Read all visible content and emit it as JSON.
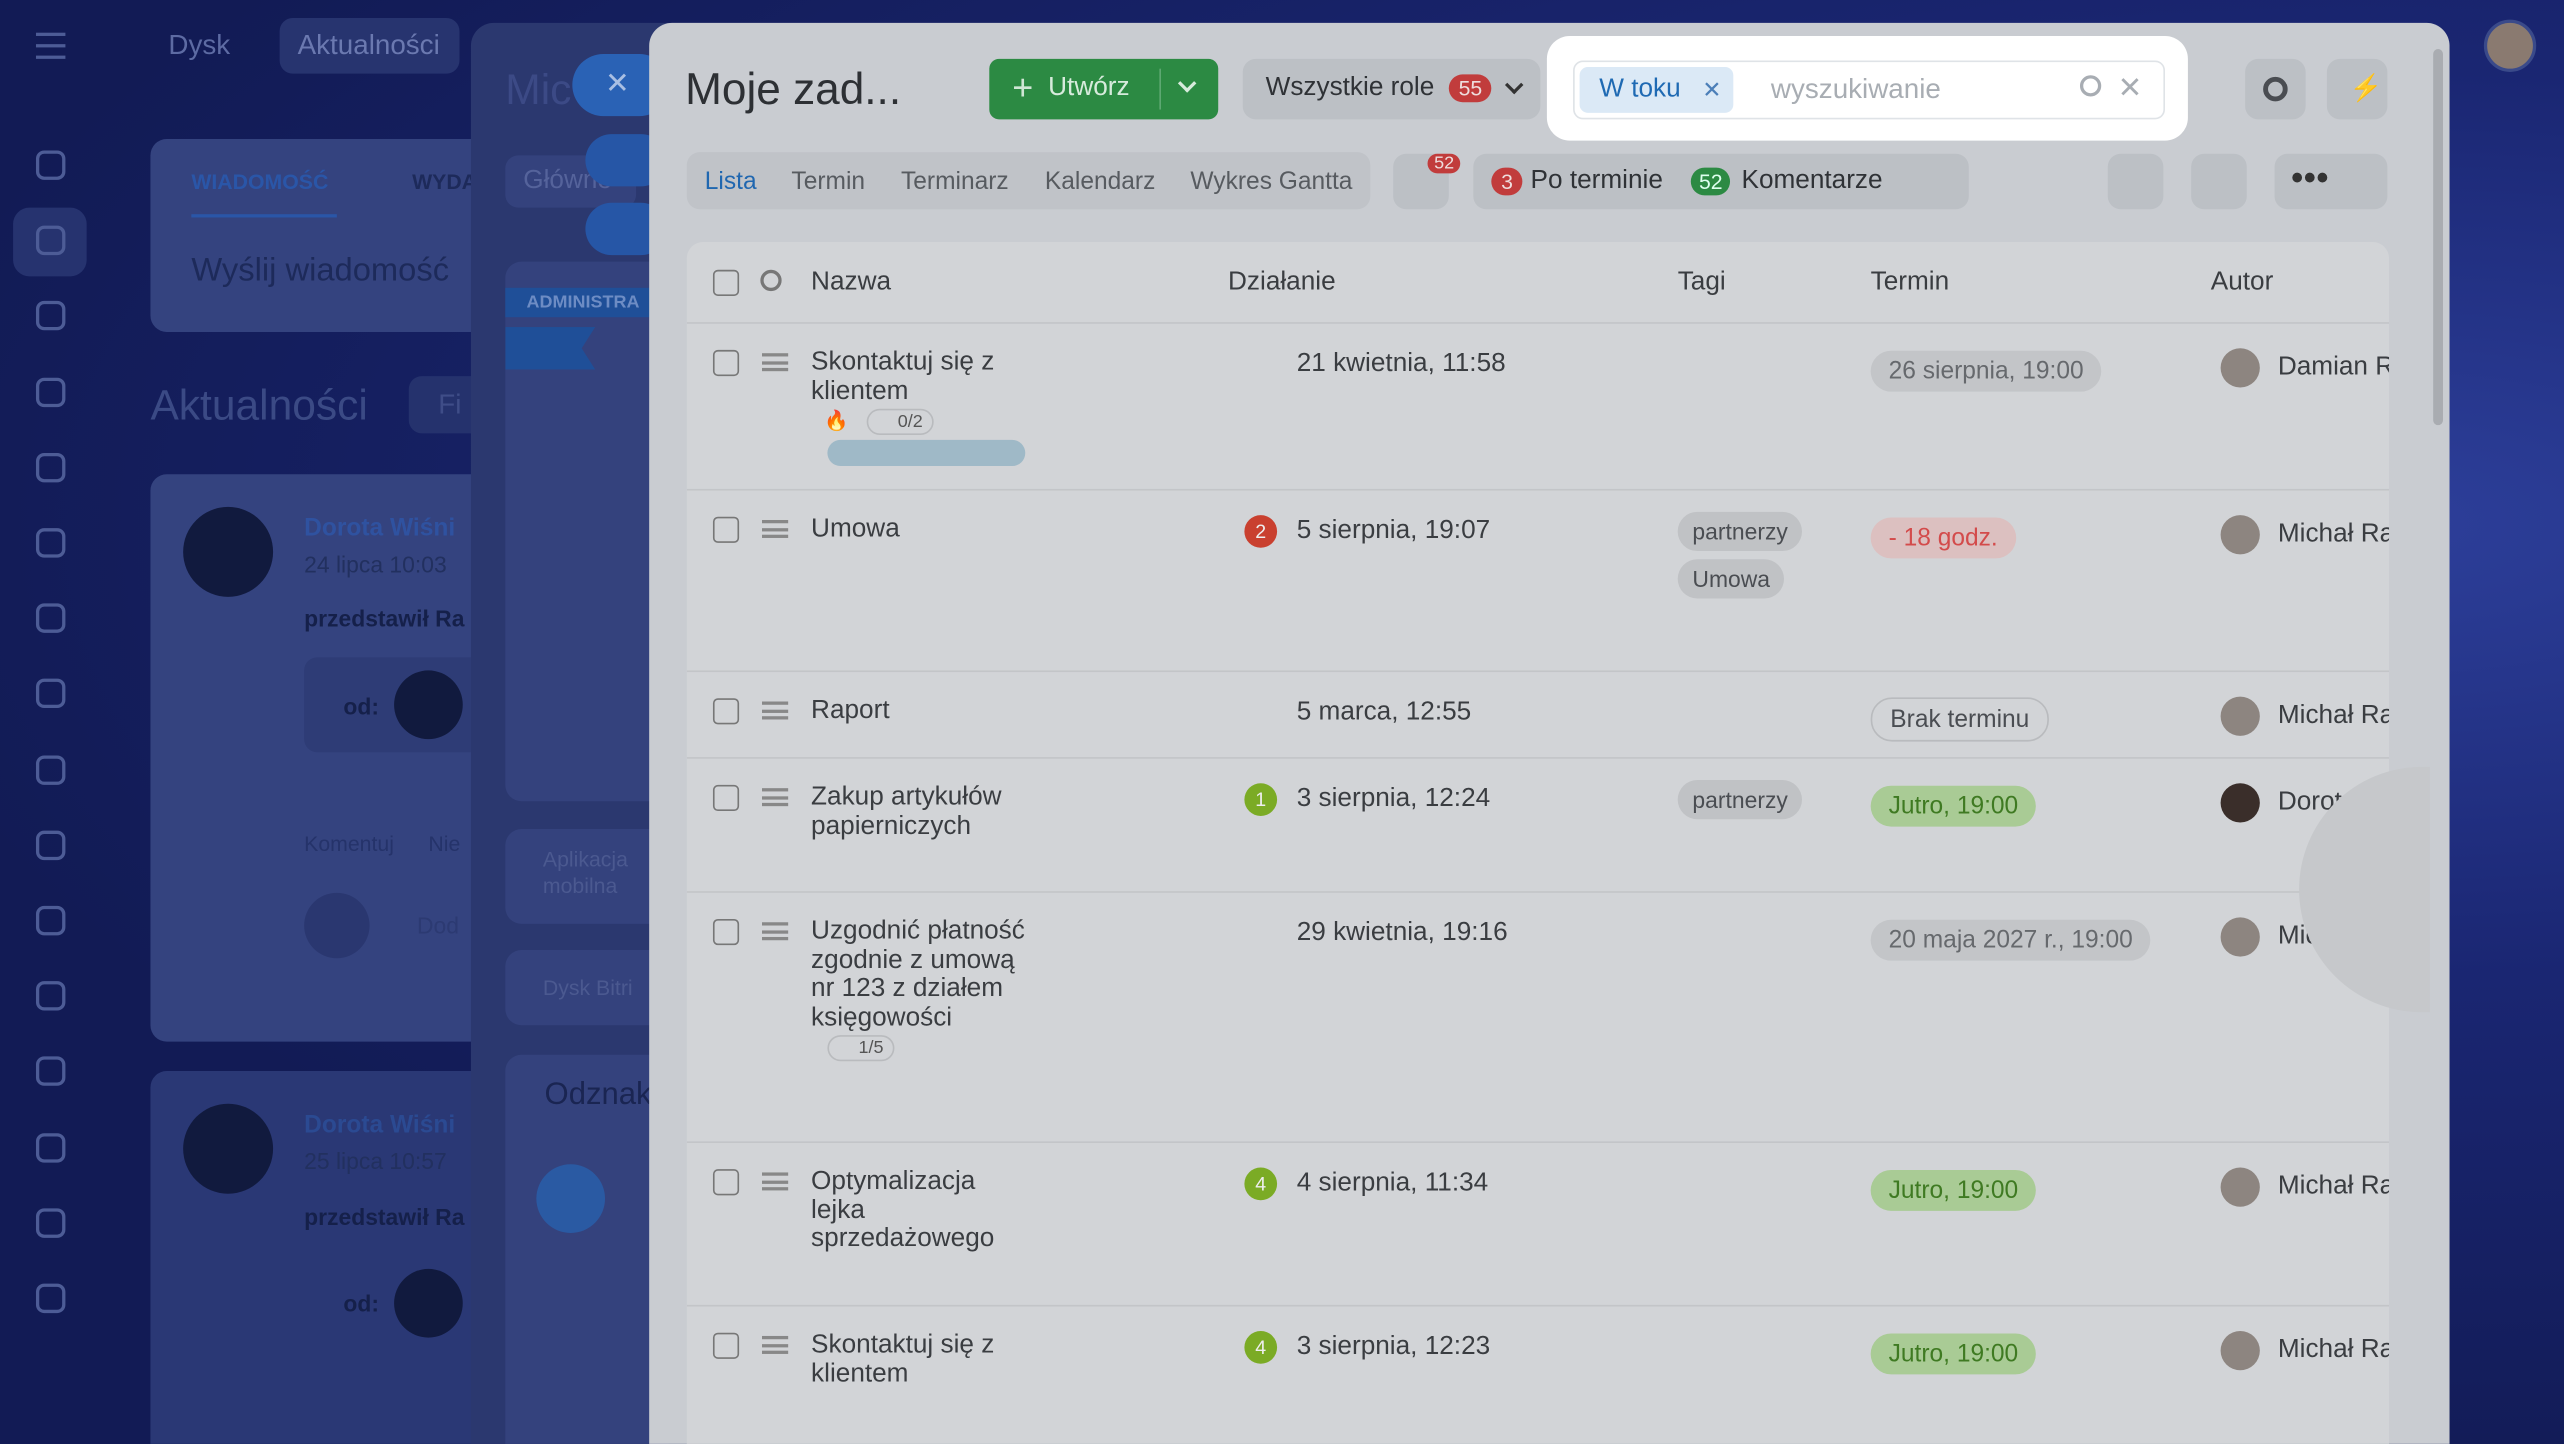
{
  "topbar": {
    "links": [
      "Dysk",
      "Aktualności"
    ]
  },
  "feed": {
    "tabs": [
      "WIADOMOŚĆ",
      "WYDA"
    ],
    "compose": "Wyślij wiadomość",
    "heading": "Aktualności",
    "filter": "Fi",
    "posts": [
      {
        "author": "Dorota Wiśni",
        "date": "24 lipca 10:03",
        "text": "przedstawił Ra",
        "from": "od:",
        "actions": [
          "Komentuj",
          "Nie"
        ],
        "comment": "Dod"
      },
      {
        "author": "Dorota Wiśni",
        "date": "25 lipca 10:57",
        "text": "przedstawił Ra",
        "from": "od:"
      }
    ]
  },
  "group_panel": {
    "title": "Mic",
    "tab": "Główne",
    "banner": "ADMINISTRA",
    "items": [
      "Aplikacja mobilna",
      "Dysk Bitri"
    ],
    "badges_title": "Odznak"
  },
  "tasks": {
    "title": "Moje zad...",
    "create": "Utwórz",
    "roles": "Wszystkie role",
    "roles_count": "55",
    "filter_chip": "W toku",
    "search_placeholder": "wyszukiwanie",
    "tabs": [
      "Lista",
      "Termin",
      "Terminarz",
      "Kalendarz",
      "Wykres Gantta"
    ],
    "chat_count": "52",
    "overdue_count": "3",
    "overdue_label": "Po terminie",
    "comments_count": "52",
    "comments_label": "Komentarze",
    "columns": [
      "Nazwa",
      "Działanie",
      "Tagi",
      "Termin",
      "Autor"
    ],
    "rows": [
      {
        "name": "Skontaktuj się z klientem",
        "checklist": "0/2",
        "activity": "21 kwietnia, 11:58",
        "tags": [],
        "deadline": "26 sierpnia, 19:00",
        "deadline_color": "#c3c5c8",
        "deadline_text_color": "#66696d",
        "author": "Damian R"
      },
      {
        "name": "Umowa",
        "badge": "2",
        "badge_color": "#c9402f",
        "activity": "5 sierpnia, 19:07",
        "tags": [
          "partnerzy",
          "Umowa"
        ],
        "deadline": "- 18 godz.",
        "deadline_color": "#dcc0c0",
        "deadline_text_color": "#d34b4b",
        "author": "Michał Ra"
      },
      {
        "name": "Raport",
        "activity": "5 marca, 12:55",
        "tags": [],
        "deadline": "Brak terminu",
        "deadline_color": "transparent",
        "deadline_text_color": "#4a4d52",
        "author": "Michał Ra"
      },
      {
        "name": "Zakup artykułów papierniczych",
        "badge": "1",
        "badge_color": "#7bab25",
        "activity": "3 sierpnia, 12:24",
        "tags": [
          "partnerzy"
        ],
        "deadline": "Jutro, 19:00",
        "deadline_color": "#a9cb95",
        "deadline_text_color": "#3f7a22",
        "author": "Dorota W"
      },
      {
        "name": "Uzgodnić płatność zgodnie z umową nr 123 z działem księgowości",
        "checklist": "1/5",
        "activity": "29 kwietnia, 19:16",
        "tags": [],
        "deadline": "20 maja 2027 r., 19:00",
        "deadline_color": "#c3c5c8",
        "deadline_text_color": "#66696d",
        "author": "Michał Ra"
      },
      {
        "name": "Optymalizacja lejka sprzedażowego",
        "badge": "4",
        "badge_color": "#7bab25",
        "activity": "4 sierpnia, 11:34",
        "tags": [],
        "deadline": "Jutro, 19:00",
        "deadline_color": "#a9cb95",
        "deadline_text_color": "#3f7a22",
        "author": "Michał Ra"
      },
      {
        "name": "Skontaktuj się z klientem",
        "badge": "4",
        "badge_color": "#7bab25",
        "activity": "3 sierpnia, 12:23",
        "tags": [],
        "deadline": "Jutro, 19:00",
        "deadline_color": "#a9cb95",
        "deadline_text_color": "#3f7a22",
        "author": "Michał Ra"
      }
    ]
  }
}
